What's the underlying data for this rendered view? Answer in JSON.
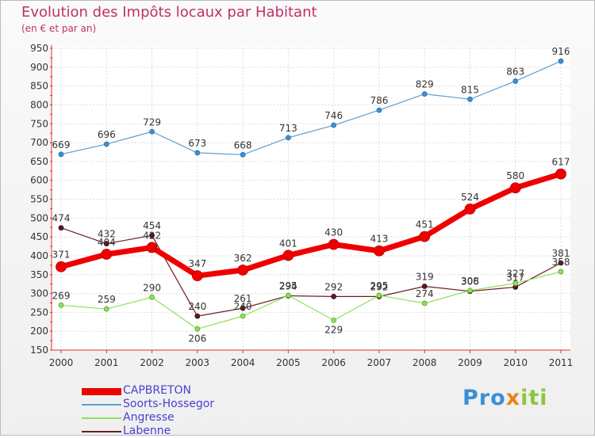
{
  "title": "Evolution des Impôts locaux par Habitant",
  "subtitle": "(en € et par an)",
  "logo": {
    "part1": "Pro",
    "part2": "x",
    "part3": "iti"
  },
  "chart_data": {
    "type": "line",
    "title": "Evolution des Impôts locaux par Habitant",
    "subtitle": "(en € et par an)",
    "xlabel": "",
    "ylabel": "",
    "ylim": [
      150,
      950
    ],
    "yticks": [
      150,
      200,
      250,
      300,
      350,
      400,
      450,
      500,
      550,
      600,
      650,
      700,
      750,
      800,
      850,
      900,
      950
    ],
    "categories": [
      "2000",
      "2001",
      "2002",
      "2003",
      "2004",
      "2005",
      "2006",
      "2007",
      "2008",
      "2009",
      "2010",
      "2011"
    ],
    "grid": true,
    "legend_position": "bottom-left",
    "series": [
      {
        "name": "CAPBRETON",
        "color": "#ee0000",
        "values": [
          371,
          404,
          422,
          347,
          362,
          401,
          430,
          413,
          451,
          524,
          580,
          617
        ]
      },
      {
        "name": "Soorts-Hossegor",
        "color": "#5a9fd4",
        "values": [
          669,
          696,
          729,
          673,
          668,
          713,
          746,
          786,
          829,
          815,
          863,
          916
        ]
      },
      {
        "name": "Angresse",
        "color": "#8ee05a",
        "values": [
          269,
          259,
          290,
          206,
          240,
          295,
          229,
          295,
          274,
          308,
          327,
          358
        ]
      },
      {
        "name": "Labenne",
        "color": "#6b1c24",
        "values": [
          474,
          432,
          454,
          240,
          261,
          294,
          292,
          292,
          319,
          306,
          317,
          381
        ]
      }
    ]
  }
}
